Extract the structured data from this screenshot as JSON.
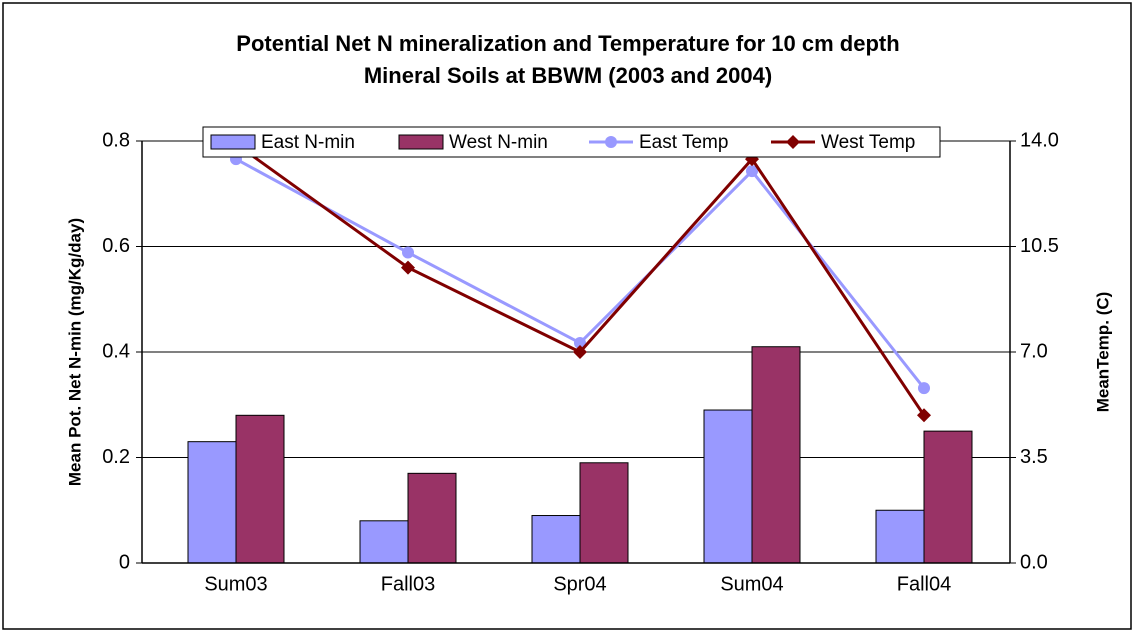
{
  "chart_data": {
    "type": "bar",
    "title": "Potential Net N mineralization and Temperature for 10 cm depth",
    "subtitle": "Mineral Soils at BBWM (2003 and 2004)",
    "ylabel": "Mean Pot. Net N-min (mg/Kg/day)",
    "y2label": "MeanTemp. (C)",
    "categories": [
      "Sum03",
      "Fall03",
      "Spr04",
      "Sum04",
      "Fall04"
    ],
    "series": [
      {
        "name": "East N-min",
        "type": "bar",
        "color": "#9999ff",
        "values": [
          0.23,
          0.08,
          0.09,
          0.29,
          0.1
        ]
      },
      {
        "name": "West N-min",
        "type": "bar",
        "color": "#993366",
        "values": [
          0.28,
          0.17,
          0.19,
          0.41,
          0.25
        ]
      },
      {
        "name": "East Temp",
        "type": "line",
        "axis": "y2",
        "color": "#9999ff",
        "marker": "circle",
        "values": [
          13.4,
          10.3,
          7.3,
          13.0,
          5.8
        ]
      },
      {
        "name": "West Temp",
        "type": "line",
        "axis": "y2",
        "color": "#800000",
        "marker": "diamond",
        "values": [
          13.9,
          9.8,
          7.0,
          13.4,
          4.9
        ]
      }
    ],
    "ylim": [
      0,
      0.8
    ],
    "yticks": [
      0,
      0.2,
      0.4,
      0.6,
      0.8
    ],
    "y2lim": [
      0,
      14
    ],
    "y2ticks": [
      {
        "value": 0,
        "label": "0.0"
      },
      3.5,
      {
        "value": 7,
        "label": "7.0"
      },
      10.5,
      {
        "value": 14,
        "label": "14.0"
      }
    ],
    "grid": true,
    "legend": "top"
  }
}
